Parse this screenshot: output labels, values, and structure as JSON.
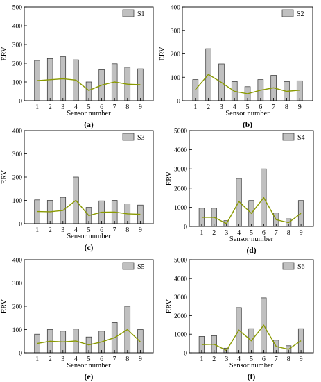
{
  "figure": {
    "colors": {
      "bar_fill": "#c0c0c0",
      "bar_stroke": "#303030",
      "line": "#8a9a00",
      "axis": "#000000"
    }
  },
  "chart_data": [
    {
      "type": "bar",
      "panel_label": "(a)",
      "legend": "S1",
      "legend_position": "top-right",
      "xlabel": "Sensor number",
      "ylabel": "ERV",
      "categories": [
        "1",
        "2",
        "3",
        "4",
        "5",
        "6",
        "7",
        "8",
        "9"
      ],
      "ylim": [
        0,
        500
      ],
      "yticks": [
        0,
        100,
        200,
        300,
        400,
        500
      ],
      "series": [
        {
          "name": "S1",
          "type": "bar",
          "values": [
            215,
            225,
            235,
            218,
            100,
            165,
            197,
            178,
            170
          ]
        },
        {
          "type": "line",
          "values": [
            107,
            112,
            117,
            110,
            55,
            83,
            100,
            88,
            85
          ]
        }
      ]
    },
    {
      "type": "bar",
      "panel_label": "(b)",
      "legend": "S2",
      "legend_position": "top-right",
      "xlabel": "Sensor number",
      "ylabel": "ERV",
      "categories": [
        "1",
        "2",
        "3",
        "4",
        "5",
        "6",
        "7",
        "8",
        "9"
      ],
      "ylim": [
        0,
        400
      ],
      "yticks": [
        0,
        100,
        200,
        300,
        400
      ],
      "series": [
        {
          "name": "S2",
          "type": "bar",
          "values": [
            90,
            222,
            157,
            82,
            60,
            90,
            108,
            82,
            85
          ]
        },
        {
          "type": "line",
          "values": [
            47,
            112,
            78,
            40,
            30,
            45,
            55,
            40,
            45
          ]
        }
      ]
    },
    {
      "type": "bar",
      "panel_label": "(c)",
      "legend": "S3",
      "legend_position": "top-right",
      "xlabel": "Sensor number",
      "ylabel": "ERV",
      "categories": [
        "1",
        "2",
        "3",
        "4",
        "5",
        "6",
        "7",
        "8",
        "9"
      ],
      "ylim": [
        0,
        400
      ],
      "yticks": [
        0,
        100,
        200,
        300,
        400
      ],
      "series": [
        {
          "name": "S3",
          "type": "bar",
          "values": [
            102,
            100,
            113,
            200,
            70,
            98,
            100,
            85,
            80
          ]
        },
        {
          "type": "line",
          "values": [
            52,
            51,
            57,
            100,
            35,
            49,
            50,
            42,
            40
          ]
        }
      ]
    },
    {
      "type": "bar",
      "panel_label": "(d)",
      "legend": "S4",
      "legend_position": "top-right",
      "xlabel": "Sensor number",
      "ylabel": "ERV",
      "categories": [
        "1",
        "2",
        "3",
        "4",
        "5",
        "6",
        "7",
        "8",
        "9"
      ],
      "ylim": [
        0,
        5000
      ],
      "yticks": [
        0,
        1000,
        2000,
        3000,
        4000,
        5000
      ],
      "series": [
        {
          "name": "S4",
          "type": "bar",
          "values": [
            950,
            950,
            300,
            2500,
            1350,
            3000,
            700,
            400,
            1350
          ]
        },
        {
          "type": "line",
          "values": [
            475,
            475,
            150,
            1300,
            680,
            1500,
            350,
            200,
            680
          ]
        }
      ]
    },
    {
      "type": "bar",
      "panel_label": "(e)",
      "legend": "S5",
      "legend_position": "top-right",
      "xlabel": "Sensor number",
      "ylabel": "ERV",
      "categories": [
        "1",
        "2",
        "3",
        "4",
        "5",
        "6",
        "7",
        "8",
        "9"
      ],
      "ylim": [
        0,
        400
      ],
      "yticks": [
        0,
        100,
        200,
        300,
        400
      ],
      "series": [
        {
          "name": "S5",
          "type": "bar",
          "values": [
            80,
            100,
            93,
            102,
            68,
            93,
            130,
            200,
            100
          ]
        },
        {
          "type": "line",
          "values": [
            40,
            50,
            47,
            51,
            34,
            47,
            65,
            100,
            47
          ]
        }
      ]
    },
    {
      "type": "bar",
      "panel_label": "(f)",
      "legend": "S6",
      "legend_position": "top-right",
      "xlabel": "Sensor number",
      "ylabel": "ERV",
      "categories": [
        "1",
        "2",
        "3",
        "4",
        "5",
        "6",
        "7",
        "8",
        "9"
      ],
      "ylim": [
        0,
        5000
      ],
      "yticks": [
        0,
        1000,
        2000,
        3000,
        4000,
        5000
      ],
      "series": [
        {
          "name": "S6",
          "type": "bar",
          "values": [
            880,
            920,
            250,
            2430,
            1300,
            2950,
            680,
            380,
            1300
          ]
        },
        {
          "type": "line",
          "values": [
            440,
            460,
            125,
            1220,
            650,
            1480,
            340,
            190,
            650
          ]
        }
      ]
    }
  ]
}
